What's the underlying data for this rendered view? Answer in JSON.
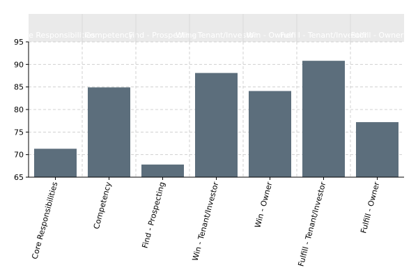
{
  "chart_data": {
    "type": "bar",
    "categories": [
      "Core Responsibilities",
      "Competency",
      "Find - Prospecting",
      "Win - Tenant/Investor",
      "Win - Owner",
      "Fulfill - Tenant/Investor",
      "Fulfill - Owner"
    ],
    "values": [
      71.3,
      84.9,
      67.8,
      88.1,
      84.1,
      90.8,
      77.2
    ],
    "ylim": [
      65,
      95
    ],
    "yticks": [
      65,
      70,
      75,
      80,
      85,
      90,
      95
    ],
    "grid": true,
    "xlabel_rotation": "vertical, slanted",
    "header_band": "category names repeated in a light gray band above the plot",
    "colors": {
      "bar": "#5c6e7c",
      "grid": "#d0d0d0",
      "header_band": "#eaeaea"
    }
  }
}
